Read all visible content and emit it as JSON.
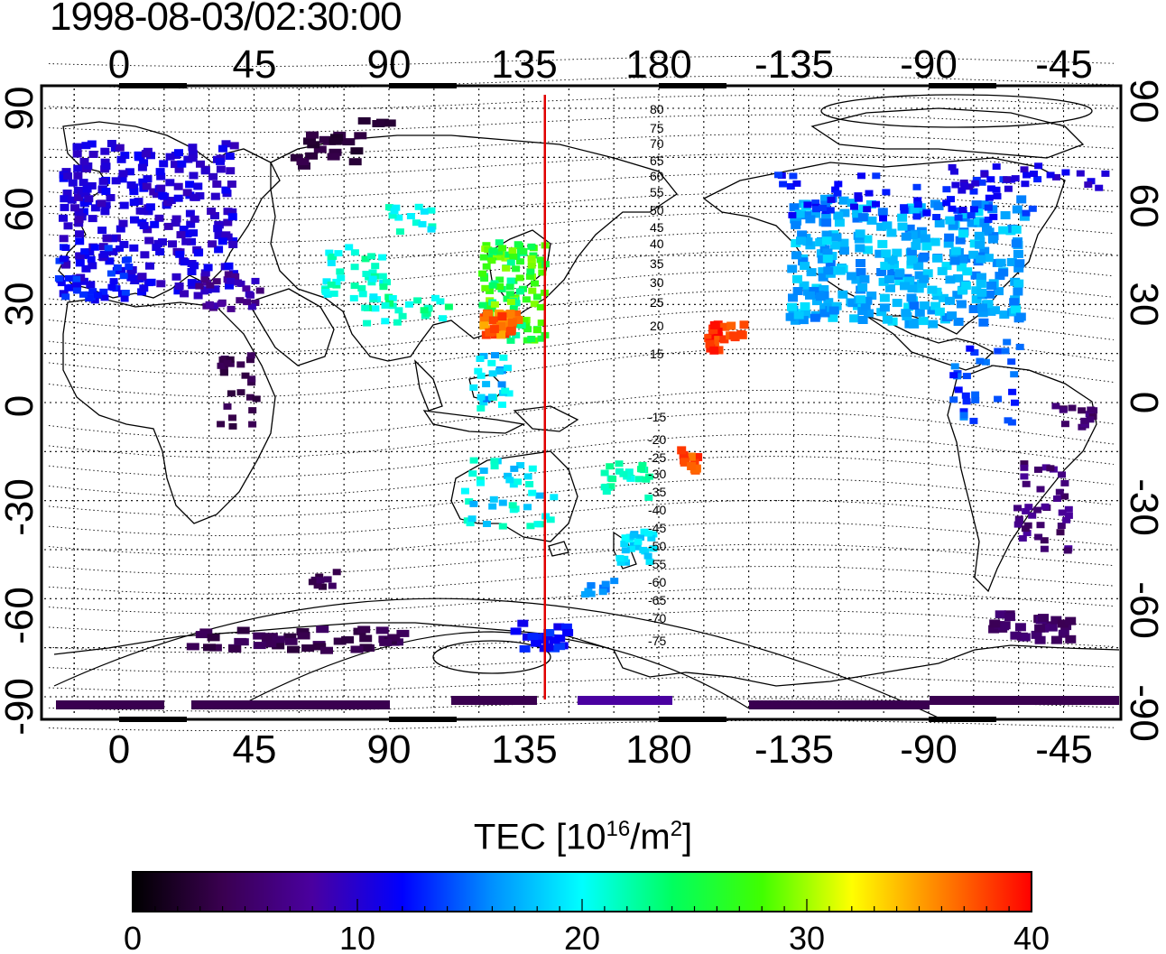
{
  "title": "1998-08-03/02:30:00",
  "map": {
    "top_lon_labels": [
      "0",
      "45",
      "90",
      "135",
      "180",
      "-135",
      "-90",
      "-45"
    ],
    "bottom_lon_labels": [
      "0",
      "45",
      "90",
      "135",
      "180",
      "-135",
      "-90",
      "-45"
    ],
    "left_lat_labels": [
      "90",
      "60",
      "30",
      "0",
      "-30",
      "-60",
      "-90"
    ],
    "right_lat_labels": [
      "90",
      "60",
      "30",
      "0",
      "-30",
      "-60",
      "-90"
    ],
    "magnetic_lat_labels_north": [
      "80",
      "75",
      "70",
      "65",
      "60",
      "55",
      "50",
      "45",
      "40",
      "35",
      "30",
      "25",
      "20",
      "15"
    ],
    "magnetic_lat_labels_south": [
      "-15",
      "-20",
      "-25",
      "-30",
      "-35",
      "-40",
      "-45",
      "-50",
      "-55",
      "-60",
      "-65",
      "-70",
      "-75"
    ],
    "meridian_lon": 142,
    "meridian_color": "#e00000"
  },
  "colorbar": {
    "label_main": "TEC  [10",
    "label_exp1": "16",
    "label_mid": "/m",
    "label_exp2": "2",
    "label_end": "]",
    "ticks": [
      "0",
      "10",
      "20",
      "30",
      "40"
    ],
    "colors": [
      "#000000",
      "#3a0050",
      "#4a00a0",
      "#0000ff",
      "#0090ff",
      "#00ffff",
      "#00ff60",
      "#40ff00",
      "#ffff00",
      "#ff8000",
      "#ff0000"
    ]
  }
}
